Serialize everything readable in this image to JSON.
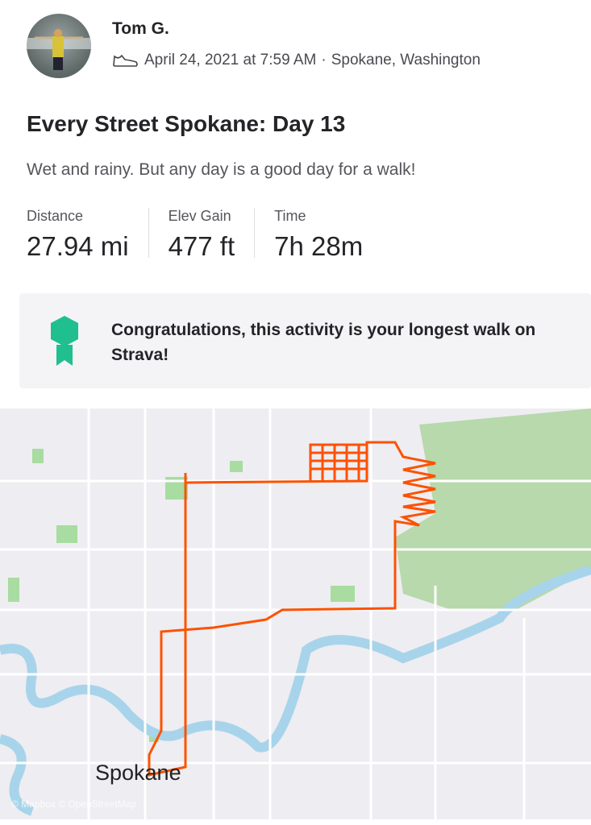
{
  "athlete": {
    "name": "Tom G."
  },
  "activity": {
    "sport_icon": "shoe-icon",
    "date": "April 24, 2021 at 7:59 AM",
    "separator": "·",
    "location": "Spokane, Washington",
    "title": "Every Street Spokane: Day 13",
    "description": "Wet and rainy. But any day is a good day for a walk!"
  },
  "stats": [
    {
      "label": "Distance",
      "value": "27.94 mi"
    },
    {
      "label": "Elev Gain",
      "value": "477 ft"
    },
    {
      "label": "Time",
      "value": "7h 28m"
    }
  ],
  "achievement": {
    "icon": "medal-icon",
    "text": "Congratulations, this activity is your longest walk on Strava!",
    "color": "#1fbf8f"
  },
  "map": {
    "city_label": "Spokane",
    "attribution": "© Mapbox © OpenStreetMap",
    "route_color": "#fc5200"
  }
}
